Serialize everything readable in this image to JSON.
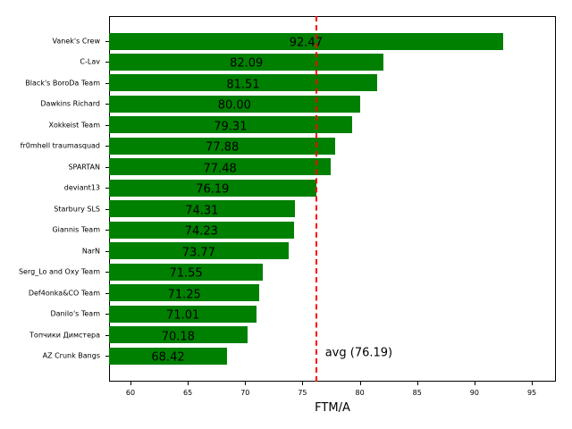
{
  "chart_data": {
    "type": "bar",
    "orientation": "horizontal",
    "title": "",
    "xlabel": "FTM/A",
    "ylabel": "",
    "xlim": [
      58.13,
      97.1
    ],
    "xticks": [
      60,
      65,
      70,
      75,
      80,
      85,
      90,
      95
    ],
    "grid": false,
    "bar_color": "#008000",
    "categories": [
      "Vanek's Crew",
      "C-Lav",
      "Black's BoroDa Team",
      "Dawkins Richard",
      "Xokkeist Team",
      "fr0mhell traumasquad",
      "SPARTAN",
      "deviant13",
      "Starbury SLS",
      "Giannis Team",
      "NarN",
      "Serg_Lo and Oxy Team",
      "Def4onka&CO Team",
      "Danilo's Team",
      "Топчики Димстера",
      "AZ Crunk Bangs"
    ],
    "values": [
      92.47,
      82.09,
      81.51,
      80.0,
      79.31,
      77.88,
      77.48,
      76.19,
      74.31,
      74.23,
      73.77,
      71.55,
      71.25,
      71.01,
      70.18,
      68.42
    ],
    "value_labels": [
      "92.47",
      "82.09",
      "81.51",
      "80.00",
      "79.31",
      "77.88",
      "77.48",
      "76.19",
      "74.31",
      "74.23",
      "73.77",
      "71.55",
      "71.25",
      "71.01",
      "70.18",
      "68.42"
    ],
    "reference_line": {
      "value": 76.19,
      "label": "avg (76.19)",
      "color": "#ff0000",
      "style": "dashed"
    }
  }
}
